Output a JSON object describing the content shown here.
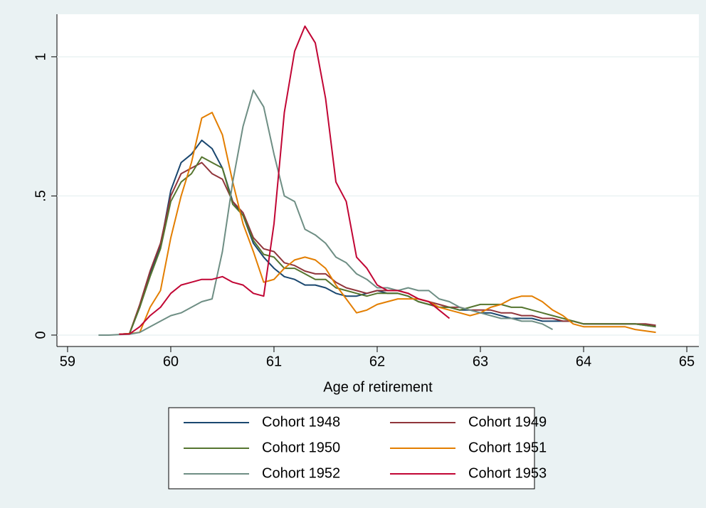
{
  "chart_data": {
    "type": "line",
    "x_label": "Age of retirement",
    "x": [
      59.3,
      59.4,
      59.5,
      59.6,
      59.7,
      59.8,
      59.9,
      60.0,
      60.1,
      60.2,
      60.3,
      60.4,
      60.5,
      60.6,
      60.7,
      60.8,
      60.9,
      61.0,
      61.1,
      61.2,
      61.3,
      61.4,
      61.5,
      61.6,
      61.7,
      61.8,
      61.9,
      62.0,
      62.1,
      62.2,
      62.3,
      62.4,
      62.5,
      62.6,
      62.7,
      62.8,
      62.9,
      63.0,
      63.1,
      63.2,
      63.3,
      63.4,
      63.5,
      63.6,
      63.7,
      63.8,
      63.9,
      64.0,
      64.1,
      64.2,
      64.3,
      64.4,
      64.5,
      64.6,
      64.7
    ],
    "series": [
      {
        "name": "Cohort 1948",
        "color": "#1a476f",
        "values": [
          null,
          null,
          0.003,
          0.005,
          0.1,
          0.22,
          0.32,
          0.52,
          0.62,
          0.65,
          0.7,
          0.67,
          0.6,
          0.48,
          0.43,
          0.33,
          0.28,
          0.24,
          0.21,
          0.2,
          0.18,
          0.18,
          0.17,
          0.15,
          0.14,
          0.14,
          0.15,
          0.16,
          0.15,
          0.15,
          0.14,
          0.12,
          0.11,
          0.1,
          0.1,
          0.09,
          0.09,
          0.08,
          0.08,
          0.07,
          0.06,
          0.06,
          0.06,
          0.05,
          0.05,
          0.05,
          0.05,
          0.04,
          0.04,
          0.04,
          0.04,
          0.04,
          0.04,
          0.035,
          0.03
        ]
      },
      {
        "name": "Cohort 1949",
        "color": "#90353b",
        "values": [
          null,
          null,
          0.003,
          0.005,
          0.11,
          0.23,
          0.33,
          0.5,
          0.58,
          0.6,
          0.62,
          0.58,
          0.56,
          0.48,
          0.44,
          0.35,
          0.31,
          0.3,
          0.26,
          0.25,
          0.23,
          0.22,
          0.22,
          0.19,
          0.17,
          0.16,
          0.15,
          0.16,
          0.16,
          0.16,
          0.15,
          0.13,
          0.12,
          0.11,
          0.1,
          0.1,
          0.09,
          0.09,
          0.09,
          0.08,
          0.08,
          0.07,
          0.07,
          0.06,
          0.06,
          0.05,
          0.05,
          0.04,
          0.04,
          0.04,
          0.04,
          0.04,
          0.04,
          0.04,
          0.035
        ]
      },
      {
        "name": "Cohort 1950",
        "color": "#55752f",
        "values": [
          null,
          null,
          0.003,
          0.005,
          0.1,
          0.21,
          0.31,
          0.48,
          0.55,
          0.58,
          0.64,
          0.62,
          0.6,
          0.47,
          0.43,
          0.34,
          0.29,
          0.28,
          0.24,
          0.24,
          0.22,
          0.2,
          0.2,
          0.17,
          0.16,
          0.15,
          0.14,
          0.15,
          0.15,
          0.15,
          0.14,
          0.12,
          0.11,
          0.1,
          0.1,
          0.09,
          0.1,
          0.11,
          0.11,
          0.11,
          0.1,
          0.1,
          0.09,
          0.08,
          0.07,
          0.06,
          0.05,
          0.04,
          0.04,
          0.04,
          0.04,
          0.04,
          0.04,
          0.035,
          0.03
        ]
      },
      {
        "name": "Cohort 1951",
        "color": "#e37e00",
        "values": [
          null,
          null,
          0.003,
          0.005,
          0.01,
          0.1,
          0.16,
          0.35,
          0.5,
          0.62,
          0.78,
          0.8,
          0.72,
          0.55,
          0.4,
          0.3,
          0.19,
          0.2,
          0.24,
          0.27,
          0.28,
          0.27,
          0.24,
          0.18,
          0.13,
          0.08,
          0.09,
          0.11,
          0.12,
          0.13,
          0.13,
          0.13,
          0.12,
          0.1,
          0.09,
          0.08,
          0.07,
          0.08,
          0.1,
          0.11,
          0.13,
          0.14,
          0.14,
          0.12,
          0.09,
          0.07,
          0.04,
          0.03,
          0.03,
          0.03,
          0.03,
          0.03,
          0.02,
          0.015,
          0.01
        ]
      },
      {
        "name": "Cohort 1952",
        "color": "#6e8e84",
        "values": [
          0.0,
          0.0,
          0.002,
          0.003,
          0.01,
          0.03,
          0.05,
          0.07,
          0.08,
          0.1,
          0.12,
          0.13,
          0.3,
          0.55,
          0.75,
          0.88,
          0.82,
          0.65,
          0.5,
          0.48,
          0.38,
          0.36,
          0.33,
          0.28,
          0.26,
          0.22,
          0.2,
          0.17,
          0.17,
          0.16,
          0.17,
          0.16,
          0.16,
          0.13,
          0.12,
          0.1,
          0.09,
          0.08,
          0.07,
          0.06,
          0.06,
          0.05,
          0.05,
          0.04,
          0.02,
          null,
          null,
          null,
          null,
          null,
          null,
          null,
          null,
          null,
          null
        ]
      },
      {
        "name": "Cohort 1953",
        "color": "#c10534",
        "values": [
          null,
          null,
          0.003,
          0.004,
          0.03,
          0.07,
          0.1,
          0.15,
          0.18,
          0.19,
          0.2,
          0.2,
          0.21,
          0.19,
          0.18,
          0.15,
          0.14,
          0.4,
          0.8,
          1.02,
          1.11,
          1.05,
          0.85,
          0.55,
          0.48,
          0.28,
          0.24,
          0.18,
          0.16,
          0.16,
          0.15,
          0.13,
          0.12,
          0.09,
          0.06,
          null,
          null,
          null,
          null,
          null,
          null,
          null,
          null,
          null,
          null,
          null,
          null,
          null,
          null,
          null,
          null,
          null,
          null,
          null,
          null
        ]
      }
    ],
    "xlim": [
      58.897,
      65.117
    ],
    "ylim": [
      -0.041,
      1.153
    ],
    "xticks": [
      59,
      60,
      61,
      62,
      63,
      64,
      65
    ],
    "yticks": [
      0,
      {
        "value": 0.5,
        "label": ".5"
      },
      1
    ],
    "grid": true,
    "legend": "bottom"
  }
}
